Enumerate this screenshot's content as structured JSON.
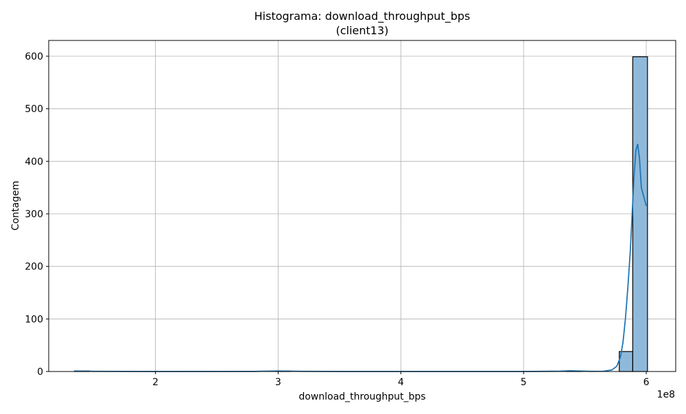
{
  "chart_data": {
    "type": "bar",
    "title_line1": "Histograma: download_throughput_bps",
    "title_line2": "(client13)",
    "xlabel": "download_throughput_bps",
    "ylabel": "Contagem",
    "x_offset_label": "1e8",
    "xlim": [
      1.13,
      6.24
    ],
    "ylim": [
      0,
      630
    ],
    "x_ticks": [
      2,
      3,
      4,
      5,
      6
    ],
    "x_tick_labels": [
      "2",
      "3",
      "4",
      "5",
      "6"
    ],
    "y_ticks": [
      0,
      100,
      200,
      300,
      400,
      500,
      600
    ],
    "y_tick_labels": [
      "0",
      "100",
      "200",
      "300",
      "400",
      "500",
      "600"
    ],
    "grid": true,
    "bins": [
      {
        "x0": 1.34,
        "x1": 1.46,
        "count": 1
      },
      {
        "x0": 2.98,
        "x1": 3.1,
        "count": 1
      },
      {
        "x0": 5.35,
        "x1": 5.47,
        "count": 1
      },
      {
        "x0": 5.78,
        "x1": 5.89,
        "count": 38
      },
      {
        "x0": 5.89,
        "x1": 6.01,
        "count": 599
      }
    ],
    "bar_color": "#8fb9da",
    "bar_edge_color": "#000000",
    "kde_color": "#1f77b4",
    "kde": [
      [
        1.34,
        1
      ],
      [
        1.5,
        0.3
      ],
      [
        2.0,
        0
      ],
      [
        2.8,
        0.2
      ],
      [
        3.0,
        1
      ],
      [
        3.2,
        0.3
      ],
      [
        3.6,
        0
      ],
      [
        5.0,
        0
      ],
      [
        5.3,
        0.6
      ],
      [
        5.38,
        1.5
      ],
      [
        5.45,
        1
      ],
      [
        5.55,
        0.3
      ],
      [
        5.65,
        0.5
      ],
      [
        5.72,
        3
      ],
      [
        5.76,
        10
      ],
      [
        5.79,
        28
      ],
      [
        5.81,
        55
      ],
      [
        5.83,
        100
      ],
      [
        5.85,
        160
      ],
      [
        5.87,
        230
      ],
      [
        5.885,
        300
      ],
      [
        5.9,
        370
      ],
      [
        5.915,
        420
      ],
      [
        5.93,
        433
      ],
      [
        5.945,
        405
      ],
      [
        5.96,
        350
      ],
      [
        6.0,
        315
      ]
    ]
  }
}
